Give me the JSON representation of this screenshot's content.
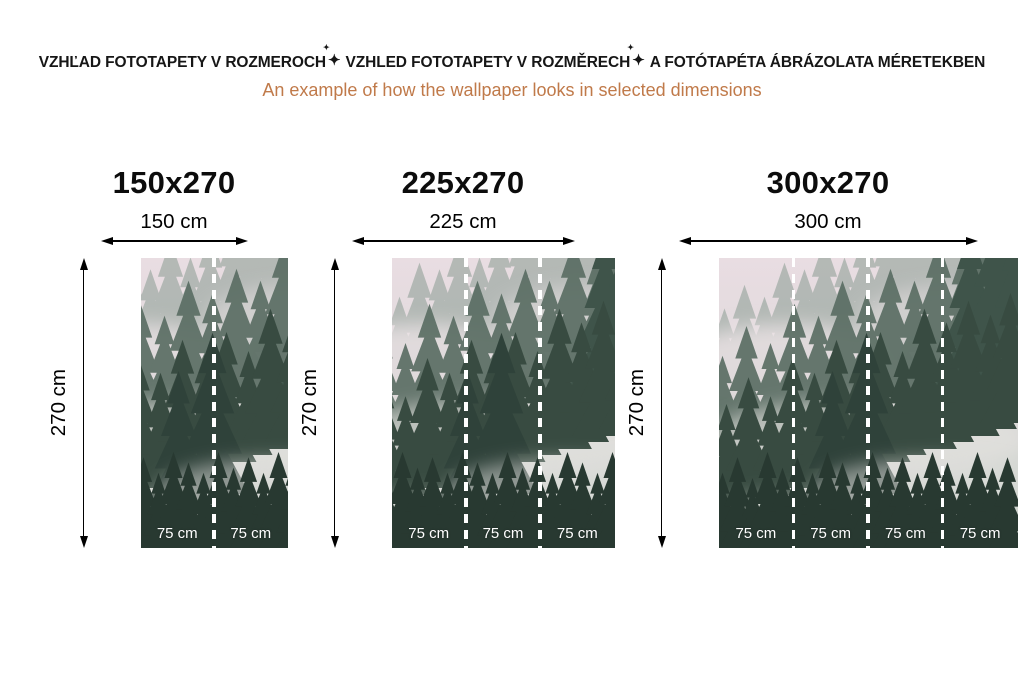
{
  "header": {
    "title_line": {
      "segments": [
        "VZHĽAD FOTOTAPETY V ROZMEROCH",
        "VZHLED FOTOTAPETY V ROZMĚRECH",
        "A FOTÓTAPÉTA ÁBRÁZOLATA MÉRETEKBEN"
      ],
      "separator": "✦",
      "color": "#161616"
    },
    "subtitle": {
      "text": "An example of how the wallpaper looks in selected dimensions",
      "color": "#c07a4a"
    }
  },
  "variants": [
    {
      "title": "150x270",
      "width_label": "150 cm",
      "height_label": "270 cm",
      "panels": [
        "75 cm",
        "75 cm"
      ]
    },
    {
      "title": "225x270",
      "width_label": "225 cm",
      "height_label": "270 cm",
      "panels": [
        "75 cm",
        "75 cm",
        "75 cm"
      ]
    },
    {
      "title": "300x270",
      "width_label": "300 cm",
      "height_label": "270 cm",
      "panels": [
        "75 cm",
        "75 cm",
        "75 cm",
        "75 cm"
      ]
    }
  ],
  "image": {
    "subject": "foggy-forest-wallpaper-preview",
    "divider_color": "#ffffff",
    "panel_label_color": "#ffffff"
  }
}
